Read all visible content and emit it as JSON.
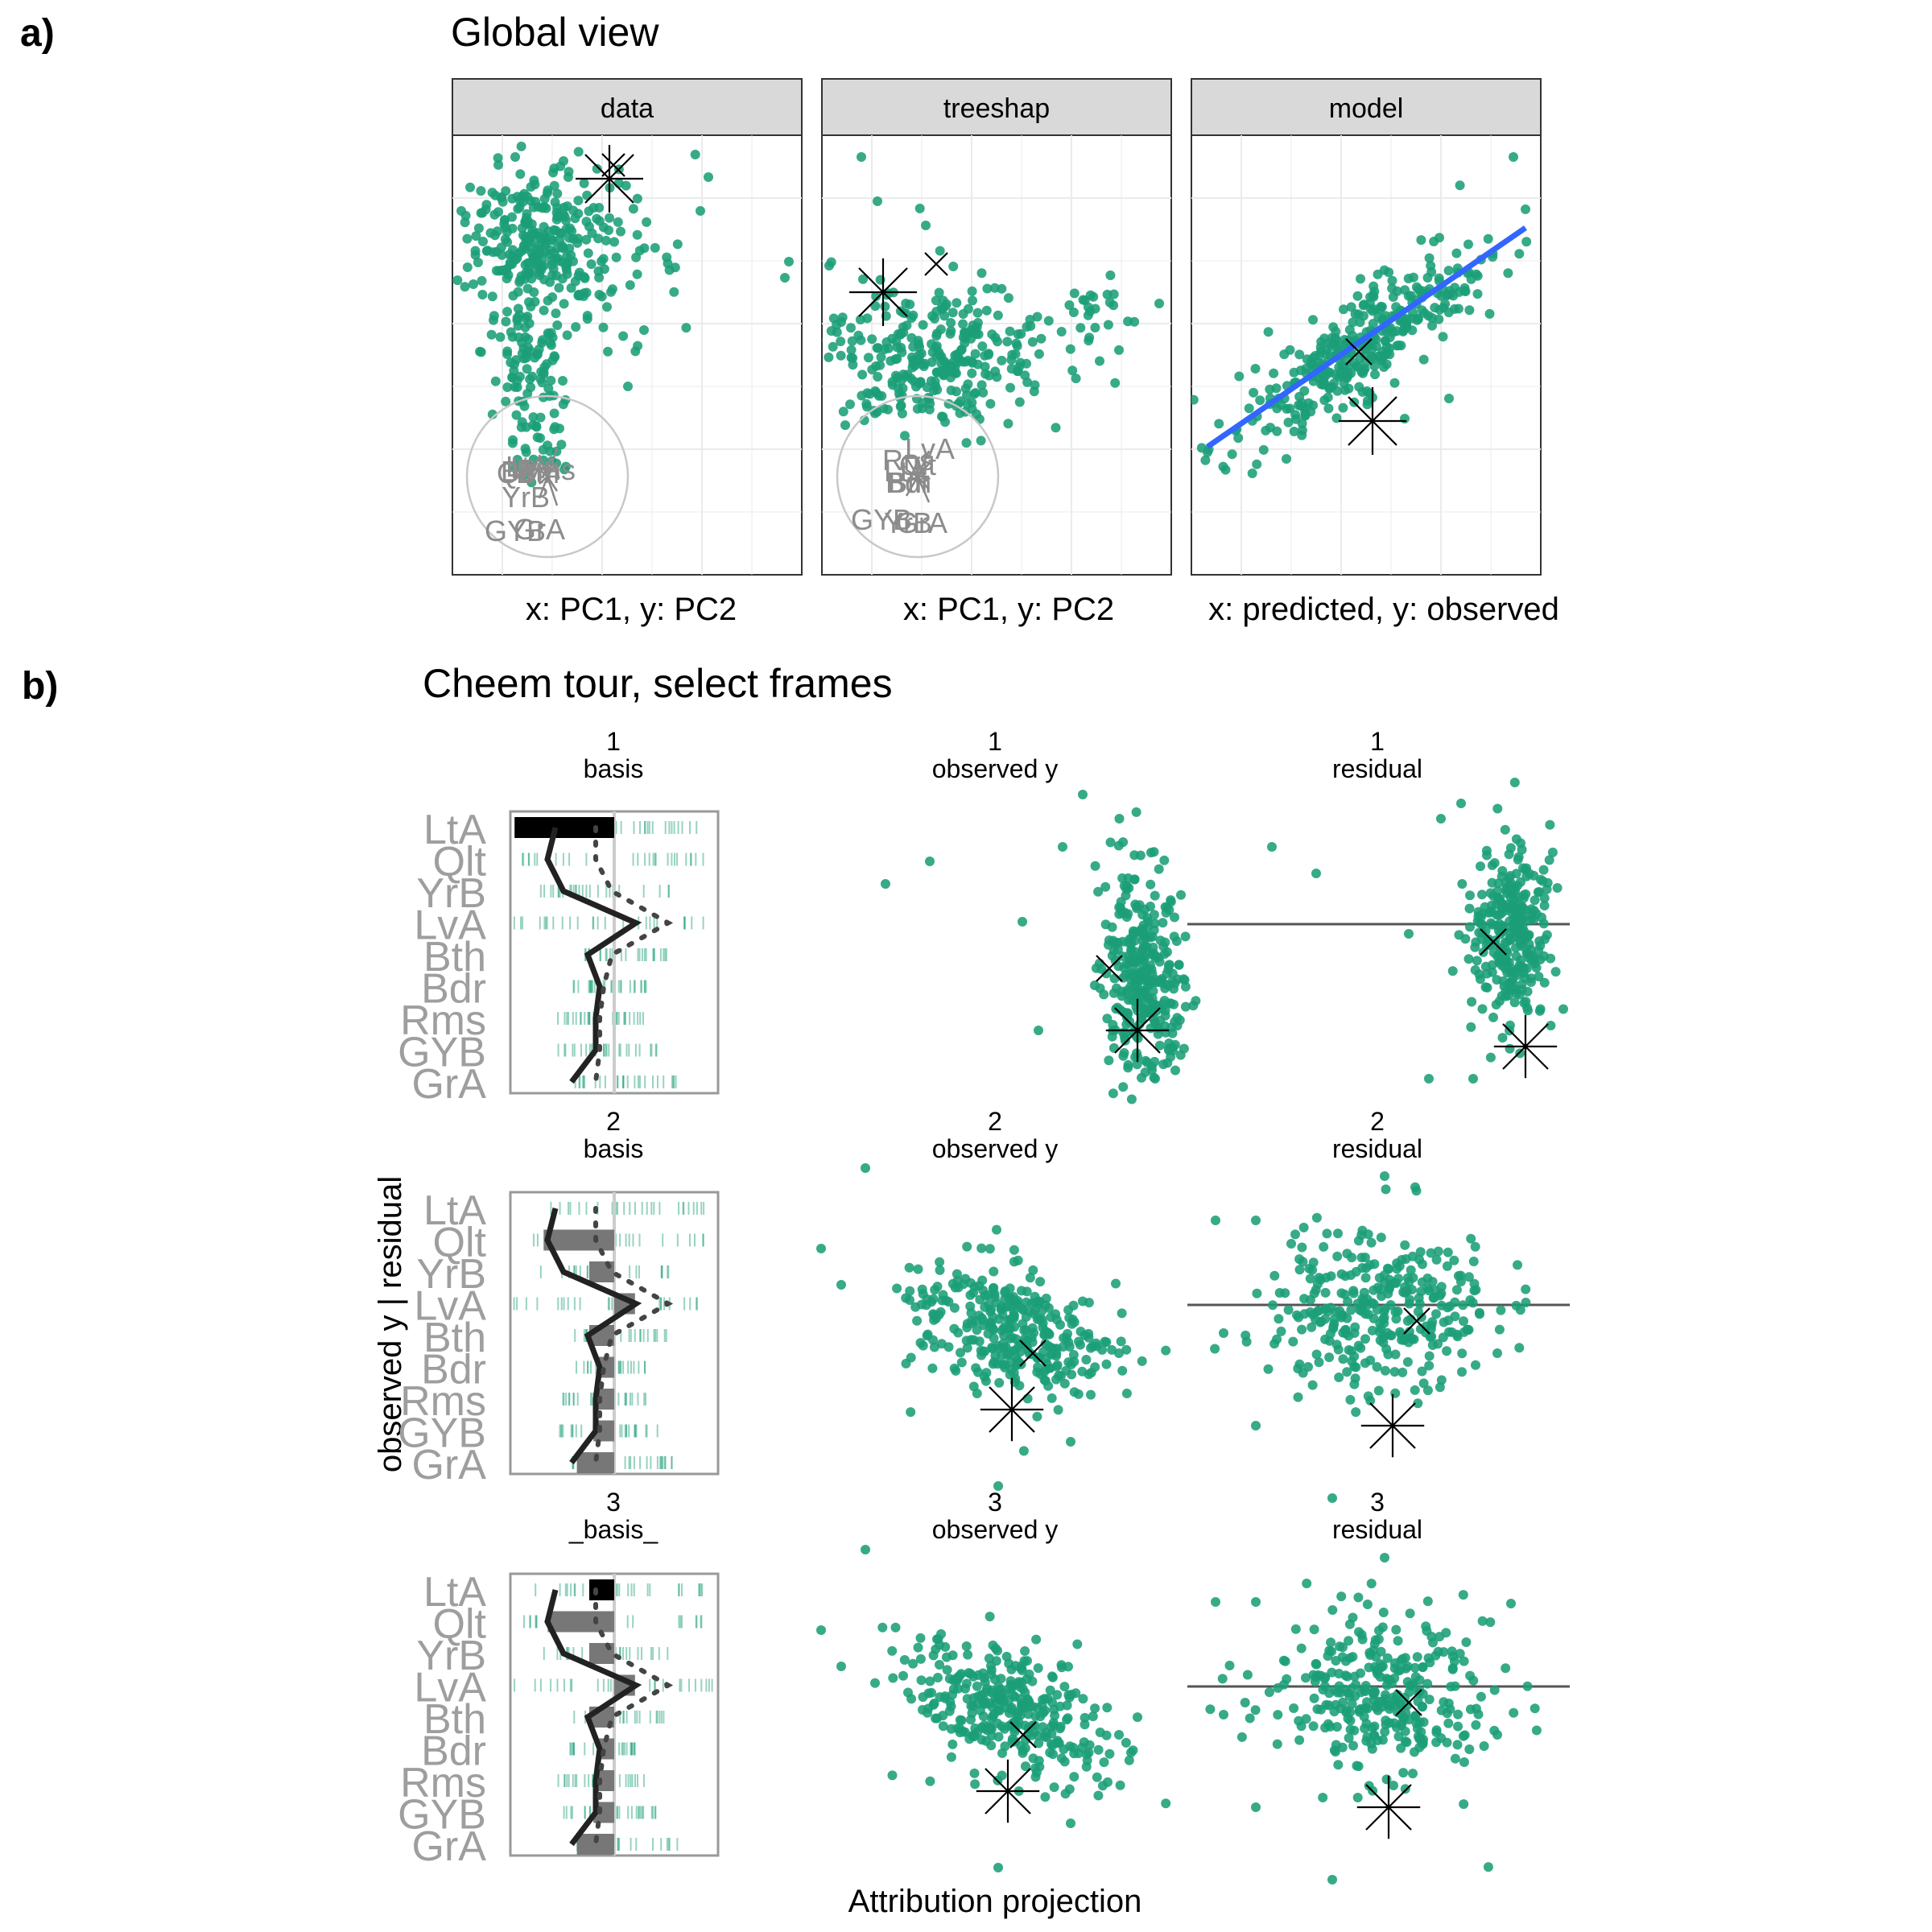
{
  "panel_a": {
    "label": "a)",
    "title": "Global view",
    "facets": [
      {
        "strip": "data",
        "caption": "x: PC1, y: PC2"
      },
      {
        "strip": "treeshap",
        "caption": "x: PC1, y: PC2"
      },
      {
        "strip": "model",
        "caption": "x: predicted, y: observed"
      }
    ],
    "data_axis_labels": [
      "LtA",
      "Qlt",
      "YrB",
      "LvA",
      "Bth",
      "Bdr",
      "Rms",
      "GYB",
      "GrA"
    ],
    "treeshap_axis_labels": [
      "LvA",
      "Rns",
      "LtA",
      "Qlt",
      "Bdr",
      "Bth",
      "GYB",
      "YrB",
      "GrA"
    ]
  },
  "panel_b": {
    "label": "b)",
    "title": "Cheem tour, select frames",
    "ylabel": "observed y | residual",
    "xlabel": "Attribution projection",
    "variables": [
      "LtA",
      "Qlt",
      "YrB",
      "LvA",
      "Bth",
      "Bdr",
      "Rms",
      "GYB",
      "GrA"
    ],
    "rows": [
      {
        "frame": "1",
        "basis_title": "basis",
        "obs_title": "observed y",
        "res_title": "residual"
      },
      {
        "frame": "2",
        "basis_title": "basis",
        "obs_title": "observed y",
        "res_title": "residual"
      },
      {
        "frame": "3",
        "basis_title": "_basis_",
        "obs_title": "observed y",
        "res_title": "residual"
      }
    ]
  },
  "colors": {
    "points": "#1b9e77",
    "fit_line": "#3366ff",
    "strip_fill": "#d9d9d9",
    "grid": "#ebebeb",
    "axis_text": "#999999",
    "ref_line": "#555555"
  },
  "chart_data": [
    {
      "type": "scatter",
      "facet": "data",
      "xlabel": "PC1",
      "ylabel": "PC2",
      "points": "approx. 400 observations; dense cluster upper-left, tail downward, few outliers right",
      "highlighted": {
        "primary_observation": "asterisk near top",
        "comparison_observation": "x near top"
      }
    },
    {
      "type": "scatter",
      "facet": "treeshap",
      "xlabel": "PC1",
      "ylabel": "PC2",
      "points": "approx. 400 observations; broad central cluster",
      "highlighted": {
        "primary_observation": "asterisk upper-left",
        "comparison_observation": "x upper-middle"
      }
    },
    {
      "type": "scatter",
      "facet": "model",
      "xlabel": "predicted",
      "ylabel": "observed",
      "points": "approx. 400 observations along positive diagonal",
      "fit_line": "linear, positive slope",
      "highlighted": {
        "primary_observation": "asterisk below line",
        "comparison_observation": "x on line"
      }
    },
    {
      "type": "bar",
      "facet": "basis frames 1-3",
      "categories": [
        "LtA",
        "Qlt",
        "YrB",
        "LvA",
        "Bth",
        "Bdr",
        "Rms",
        "GYB",
        "GrA"
      ],
      "series": [
        {
          "name": "1",
          "values": [
            -0.48,
            0,
            0,
            0,
            0,
            0,
            0,
            0,
            0
          ]
        },
        {
          "name": "2",
          "values": [
            0.0,
            -0.34,
            -0.12,
            0.1,
            -0.12,
            -0.08,
            -0.08,
            -0.1,
            -0.18
          ]
        },
        {
          "name": "3",
          "values": [
            -0.12,
            -0.32,
            -0.12,
            0.1,
            -0.12,
            -0.08,
            -0.08,
            -0.1,
            -0.18
          ]
        }
      ],
      "xlim": [
        -0.5,
        0.5
      ]
    }
  ]
}
